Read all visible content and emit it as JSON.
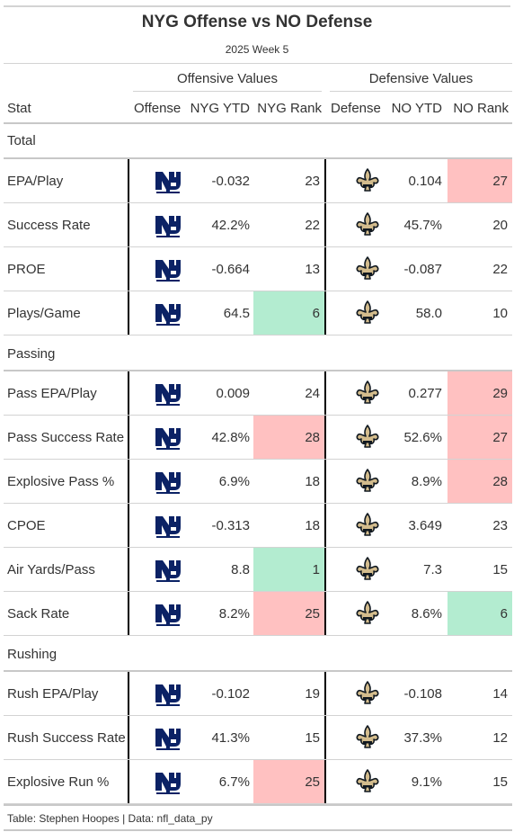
{
  "title": "NYG Offense vs NO Defense",
  "subtitle": "2025 Week 5",
  "spanners": {
    "offense": "Offensive Values",
    "defense": "Defensive Values"
  },
  "columns": {
    "stat": "Stat",
    "offense": "Offense",
    "nyg_ytd": "NYG YTD",
    "nyg_rank": "NYG Rank",
    "defense": "Defense",
    "no_ytd": "NO YTD",
    "no_rank": "NO Rank"
  },
  "colors": {
    "good": "#b3ecd0",
    "bad": "#ffc1c1",
    "nyg_blue": "#0b2265",
    "no_gold": "#d3bc8d",
    "no_black": "#101820"
  },
  "icons": {
    "offense": "nyg-logo-icon",
    "defense": "fleur-de-lis-icon"
  },
  "groups": [
    {
      "label": "Total",
      "rows": [
        {
          "stat": "EPA/Play",
          "nyg_ytd": "-0.032",
          "nyg_rank": "23",
          "no_ytd": "0.104",
          "no_rank": "27",
          "nyg_rank_hl": "",
          "no_rank_hl": "bad"
        },
        {
          "stat": "Success Rate",
          "nyg_ytd": "42.2%",
          "nyg_rank": "22",
          "no_ytd": "45.7%",
          "no_rank": "20",
          "nyg_rank_hl": "",
          "no_rank_hl": ""
        },
        {
          "stat": "PROE",
          "nyg_ytd": "-0.664",
          "nyg_rank": "13",
          "no_ytd": "-0.087",
          "no_rank": "22",
          "nyg_rank_hl": "",
          "no_rank_hl": ""
        },
        {
          "stat": "Plays/Game",
          "nyg_ytd": "64.5",
          "nyg_rank": "6",
          "no_ytd": "58.0",
          "no_rank": "10",
          "nyg_rank_hl": "good",
          "no_rank_hl": ""
        }
      ]
    },
    {
      "label": "Passing",
      "rows": [
        {
          "stat": "Pass EPA/Play",
          "nyg_ytd": "0.009",
          "nyg_rank": "24",
          "no_ytd": "0.277",
          "no_rank": "29",
          "nyg_rank_hl": "",
          "no_rank_hl": "bad"
        },
        {
          "stat": "Pass Success Rate",
          "nyg_ytd": "42.8%",
          "nyg_rank": "28",
          "no_ytd": "52.6%",
          "no_rank": "27",
          "nyg_rank_hl": "bad",
          "no_rank_hl": "bad"
        },
        {
          "stat": "Explosive Pass %",
          "nyg_ytd": "6.9%",
          "nyg_rank": "18",
          "no_ytd": "8.9%",
          "no_rank": "28",
          "nyg_rank_hl": "",
          "no_rank_hl": "bad"
        },
        {
          "stat": "CPOE",
          "nyg_ytd": "-0.313",
          "nyg_rank": "18",
          "no_ytd": "3.649",
          "no_rank": "23",
          "nyg_rank_hl": "",
          "no_rank_hl": ""
        },
        {
          "stat": "Air Yards/Pass",
          "nyg_ytd": "8.8",
          "nyg_rank": "1",
          "no_ytd": "7.3",
          "no_rank": "15",
          "nyg_rank_hl": "good",
          "no_rank_hl": ""
        },
        {
          "stat": "Sack Rate",
          "nyg_ytd": "8.2%",
          "nyg_rank": "25",
          "no_ytd": "8.6%",
          "no_rank": "6",
          "nyg_rank_hl": "bad",
          "no_rank_hl": "good"
        }
      ]
    },
    {
      "label": "Rushing",
      "rows": [
        {
          "stat": "Rush EPA/Play",
          "nyg_ytd": "-0.102",
          "nyg_rank": "19",
          "no_ytd": "-0.108",
          "no_rank": "14",
          "nyg_rank_hl": "",
          "no_rank_hl": ""
        },
        {
          "stat": "Rush Success Rate",
          "nyg_ytd": "41.3%",
          "nyg_rank": "15",
          "no_ytd": "37.3%",
          "no_rank": "12",
          "nyg_rank_hl": "",
          "no_rank_hl": ""
        },
        {
          "stat": "Explosive Run %",
          "nyg_ytd": "6.7%",
          "nyg_rank": "25",
          "no_ytd": "9.1%",
          "no_rank": "15",
          "nyg_rank_hl": "bad",
          "no_rank_hl": ""
        }
      ]
    }
  ],
  "footer": "Table: Stephen Hoopes | Data: nfl_data_py"
}
